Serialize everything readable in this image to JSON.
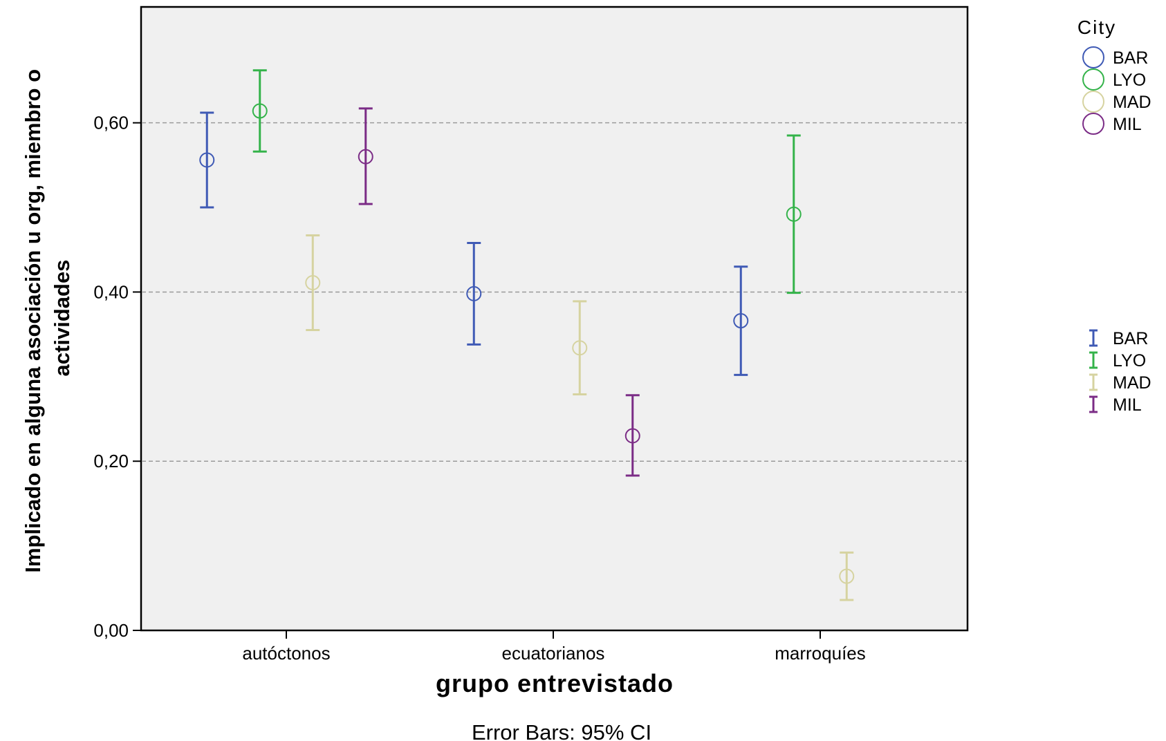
{
  "chart_data": {
    "type": "scatter",
    "subtype": "error-bar",
    "xlabel": "grupo entrevistado",
    "ylabel_lines": [
      "Implicado en alguna asociación u org, miembro o",
      "actividades"
    ],
    "footnote": "Error Bars: 95% CI",
    "categories": [
      "autóctonos",
      "ecuatorianos",
      "marroquíes"
    ],
    "y_ticks": [
      "0,00",
      "0,20",
      "0,40",
      "0,60"
    ],
    "y_tick_values": [
      0,
      0.2,
      0.4,
      0.6
    ],
    "ylim": [
      0,
      0.737
    ],
    "grid": "dashed horizontal at major ticks",
    "legend_title": "City",
    "legend_placement": "right",
    "series": [
      {
        "name": "BAR",
        "color": "#3f5ab5",
        "points": [
          {
            "category": "autóctonos",
            "mean": 0.556,
            "lower": 0.5,
            "upper": 0.612
          },
          {
            "category": "ecuatorianos",
            "mean": 0.398,
            "lower": 0.338,
            "upper": 0.458
          },
          {
            "category": "marroquíes",
            "mean": 0.366,
            "lower": 0.302,
            "upper": 0.43
          }
        ]
      },
      {
        "name": "LYO",
        "color": "#34b34a",
        "points": [
          {
            "category": "autóctonos",
            "mean": 0.614,
            "lower": 0.566,
            "upper": 0.662
          },
          {
            "category": "marroquíes",
            "mean": 0.492,
            "lower": 0.399,
            "upper": 0.585
          }
        ]
      },
      {
        "name": "MAD",
        "color": "#d6d3a0",
        "points": [
          {
            "category": "autóctonos",
            "mean": 0.411,
            "lower": 0.355,
            "upper": 0.467
          },
          {
            "category": "ecuatorianos",
            "mean": 0.334,
            "lower": 0.279,
            "upper": 0.389
          },
          {
            "category": "marroquíes",
            "mean": 0.064,
            "lower": 0.036,
            "upper": 0.092
          }
        ]
      },
      {
        "name": "MIL",
        "color": "#7b2c86",
        "points": [
          {
            "category": "autóctonos",
            "mean": 0.56,
            "lower": 0.504,
            "upper": 0.617
          },
          {
            "category": "ecuatorianos",
            "mean": 0.23,
            "lower": 0.183,
            "upper": 0.278
          }
        ]
      }
    ]
  }
}
